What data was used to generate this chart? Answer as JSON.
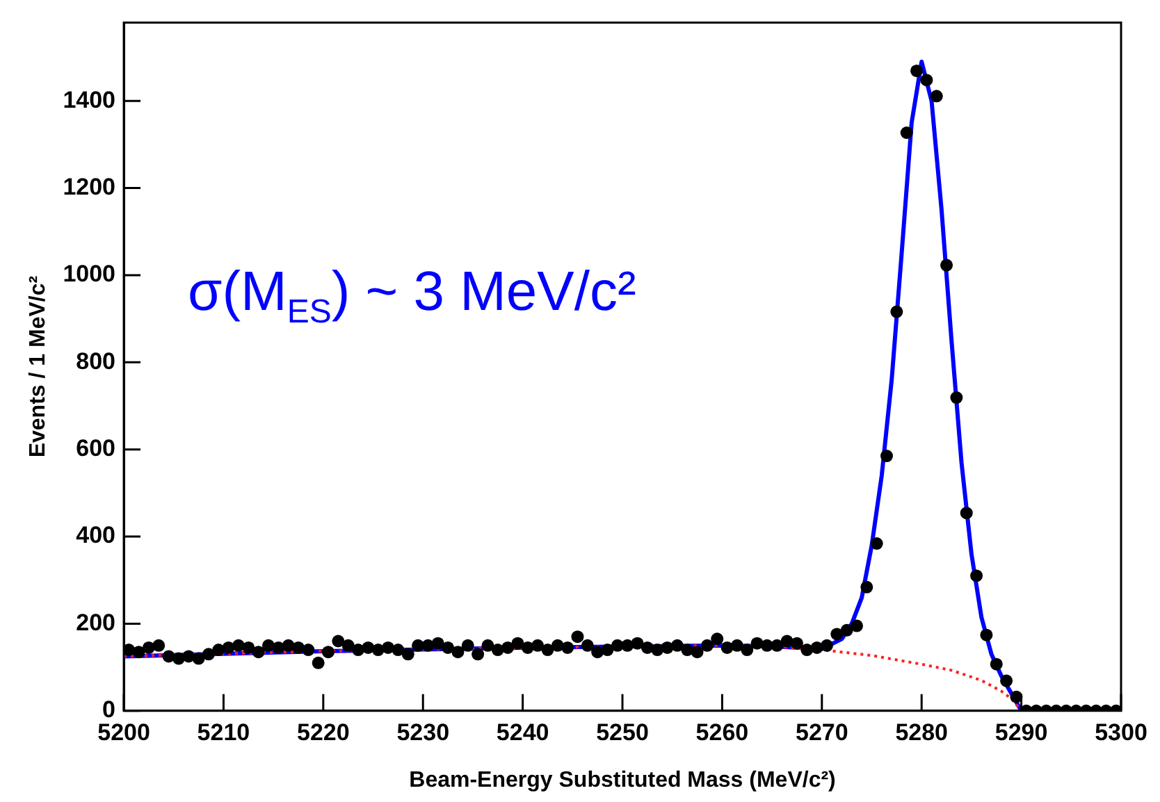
{
  "chart_data": {
    "type": "scatter",
    "xlabel": "Beam-Energy Substituted Mass (MeV/c²)",
    "ylabel": "Events / 1 MeV/c²",
    "annotations": [
      "σ(M$_{ES}$) ~ 3 MeV/c²"
    ],
    "xlim": [
      5200,
      5300
    ],
    "xticks": [
      5200,
      5210,
      5220,
      5230,
      5240,
      5250,
      5260,
      5270,
      5280,
      5290,
      5300
    ],
    "ylim": [
      0,
      1580
    ],
    "yticks": [
      0,
      200,
      400,
      600,
      800,
      1000,
      1200,
      1400
    ],
    "grid": false,
    "legend": false,
    "marker": "circle",
    "series": [
      {
        "type": "line",
        "marker": "none",
        "color": "#ff2020",
        "line_style": "dotted",
        "x": [
          5200,
          5220,
          5240,
          5260,
          5265,
          5270,
          5275,
          5280,
          5283,
          5286,
          5288,
          5289,
          5290,
          5300
        ],
        "values": [
          125,
          137,
          145,
          150,
          148,
          140,
          127,
          107,
          93,
          70,
          45,
          28,
          0,
          0
        ]
      },
      {
        "type": "line",
        "marker": "none",
        "color": "#0000ff",
        "line_style": "solid",
        "x": [
          5200,
          5220,
          5240,
          5260,
          5265,
          5270,
          5272,
          5273,
          5274,
          5275,
          5276,
          5277,
          5278,
          5279,
          5280,
          5281,
          5282,
          5283,
          5284,
          5285,
          5286,
          5287,
          5288,
          5289,
          5290,
          5300
        ],
        "values": [
          125,
          137,
          145,
          150,
          148,
          142,
          165,
          200,
          260,
          380,
          540,
          760,
          1050,
          1350,
          1490,
          1400,
          1150,
          850,
          570,
          360,
          215,
          130,
          80,
          40,
          0,
          0
        ]
      },
      {
        "color": "#000000",
        "x": [
          5200.5,
          5201.5,
          5202.5,
          5203.5,
          5204.5,
          5205.5,
          5206.5,
          5207.5,
          5208.5,
          5209.5,
          5210.5,
          5211.5,
          5212.5,
          5213.5,
          5214.5,
          5215.5,
          5216.5,
          5217.5,
          5218.5,
          5219.5,
          5220.5,
          5221.5,
          5222.5,
          5223.5,
          5224.5,
          5225.5,
          5226.5,
          5227.5,
          5228.5,
          5229.5,
          5230.5,
          5231.5,
          5232.5,
          5233.5,
          5234.5,
          5235.5,
          5236.5,
          5237.5,
          5238.5,
          5239.5,
          5240.5,
          5241.5,
          5242.5,
          5243.5,
          5244.5,
          5245.5,
          5246.5,
          5247.5,
          5248.5,
          5249.5,
          5250.5,
          5251.5,
          5252.5,
          5253.5,
          5254.5,
          5255.5,
          5256.5,
          5257.5,
          5258.5,
          5259.5,
          5260.5,
          5261.5,
          5262.5,
          5263.5,
          5264.5,
          5265.5,
          5266.5,
          5267.5,
          5268.5,
          5269.5,
          5270.5,
          5271.5,
          5272.5,
          5273.5,
          5274.5,
          5275.5,
          5276.5,
          5277.5,
          5278.5,
          5279.5,
          5280.5,
          5281.5,
          5282.5,
          5283.5,
          5284.5,
          5285.5,
          5286.5,
          5287.5,
          5288.5,
          5289.5,
          5290.5,
          5291.5,
          5292.5,
          5293.5,
          5294.5,
          5295.5,
          5296.5,
          5297.5,
          5298.5,
          5299.5
        ],
        "values": [
          140,
          135,
          145,
          150,
          125,
          120,
          125,
          120,
          130,
          140,
          145,
          150,
          145,
          135,
          150,
          145,
          150,
          145,
          140,
          110,
          135,
          160,
          150,
          140,
          145,
          140,
          145,
          140,
          130,
          150,
          150,
          155,
          145,
          135,
          150,
          130,
          150,
          140,
          145,
          155,
          145,
          150,
          140,
          150,
          145,
          170,
          150,
          135,
          140,
          150,
          150,
          155,
          145,
          140,
          145,
          150,
          140,
          135,
          150,
          165,
          145,
          150,
          140,
          155,
          150,
          150,
          160,
          155,
          140,
          145,
          150,
          176,
          185,
          195,
          284,
          384,
          585,
          916,
          1327,
          1469,
          1448,
          1411,
          1023,
          719,
          454,
          310,
          174,
          107,
          69,
          32,
          0,
          0,
          0,
          0,
          0,
          0,
          0,
          0,
          0,
          0
        ]
      }
    ]
  }
}
